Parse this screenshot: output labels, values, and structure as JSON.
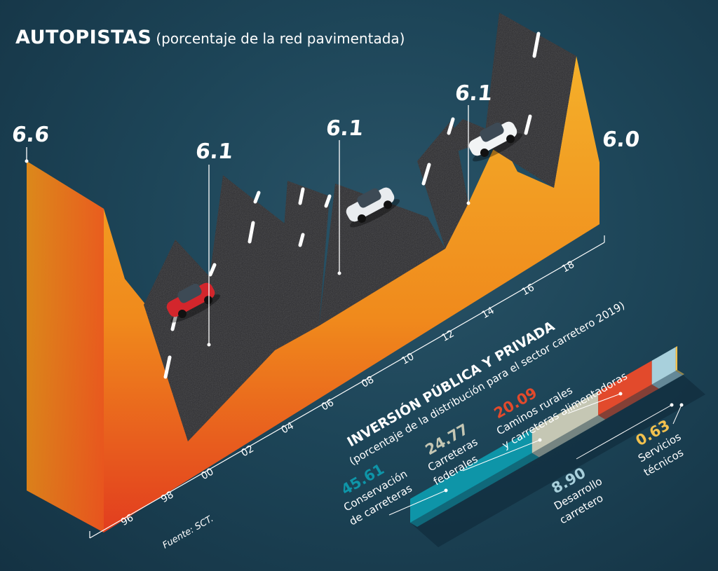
{
  "title": "AUTOPISTAS",
  "subtitle": "(porcentaje de la red pavimentada)",
  "source": "Fuente: SCT.",
  "colors": {
    "background": "#1d4558",
    "area_top": "#f6a81e",
    "area_bottom": "#e8401f",
    "road": "#2b2b2e",
    "road_stripe": "#ffffff"
  },
  "chart_data": [
    {
      "type": "area",
      "title": "AUTOPISTAS",
      "subtitle": "(porcentaje de la red pavimentada)",
      "x_ticks": [
        "96",
        "98",
        "00",
        "02",
        "04",
        "06",
        "08",
        "10",
        "12",
        "14",
        "16",
        "18"
      ],
      "highlights": [
        {
          "year": "95",
          "value": 6.6,
          "label": "6.6"
        },
        {
          "year": "00",
          "value": 6.1,
          "label": "6.1"
        },
        {
          "year": "07",
          "value": 6.1,
          "label": "6.1"
        },
        {
          "year": "13",
          "value": 6.1,
          "label": "6.1"
        },
        {
          "year": "18",
          "value": 6.0,
          "label": "6.0"
        }
      ],
      "source": "Fuente: SCT."
    },
    {
      "type": "bar",
      "title": "INVERSIÓN PÚBLICA Y PRIVADA",
      "subtitle": "(porcentaje de la distribución para el sector carretero 2019)",
      "segments": [
        {
          "value": 45.61,
          "label": "45.61",
          "name_lines": [
            "Conservación",
            "de carreteras"
          ],
          "color": "#0e95a8"
        },
        {
          "value": 24.77,
          "label": "24.77",
          "name_lines": [
            "Carreteras",
            "federales"
          ],
          "color": "#c5c7b4"
        },
        {
          "value": 20.09,
          "label": "20.09",
          "name_lines": [
            "Caminos rurales",
            "y carreteras alimentadoras"
          ],
          "color": "#e24a2c"
        },
        {
          "value": 8.9,
          "label": "8.90",
          "name_lines": [
            "Desarrollo",
            "carretero"
          ],
          "color": "#a8d0dc"
        },
        {
          "value": 0.63,
          "label": "0.63",
          "name_lines": [
            "Servicios",
            "técnicos"
          ],
          "color": "#f2c14e"
        }
      ]
    }
  ]
}
